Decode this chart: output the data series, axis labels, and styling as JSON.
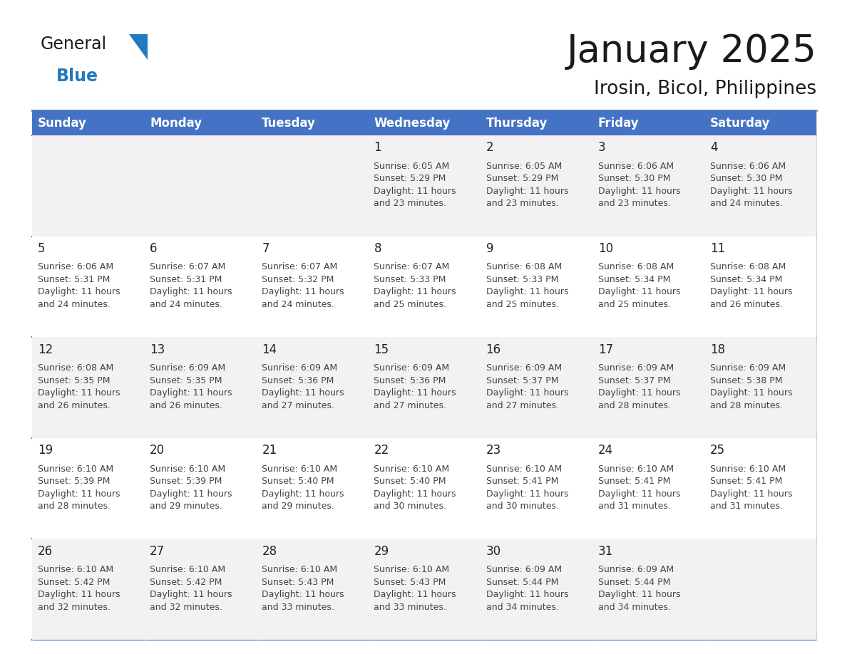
{
  "title": "January 2025",
  "subtitle": "Irosin, Bicol, Philippines",
  "header_bg": "#4472C4",
  "header_text_color": "#FFFFFF",
  "cell_bg_odd": "#F2F2F2",
  "cell_bg_even": "#FFFFFF",
  "day_headers": [
    "Sunday",
    "Monday",
    "Tuesday",
    "Wednesday",
    "Thursday",
    "Friday",
    "Saturday"
  ],
  "calendar_data": [
    [
      {
        "day": "",
        "info": ""
      },
      {
        "day": "",
        "info": ""
      },
      {
        "day": "",
        "info": ""
      },
      {
        "day": "1",
        "info": "Sunrise: 6:05 AM\nSunset: 5:29 PM\nDaylight: 11 hours\nand 23 minutes."
      },
      {
        "day": "2",
        "info": "Sunrise: 6:05 AM\nSunset: 5:29 PM\nDaylight: 11 hours\nand 23 minutes."
      },
      {
        "day": "3",
        "info": "Sunrise: 6:06 AM\nSunset: 5:30 PM\nDaylight: 11 hours\nand 23 minutes."
      },
      {
        "day": "4",
        "info": "Sunrise: 6:06 AM\nSunset: 5:30 PM\nDaylight: 11 hours\nand 24 minutes."
      }
    ],
    [
      {
        "day": "5",
        "info": "Sunrise: 6:06 AM\nSunset: 5:31 PM\nDaylight: 11 hours\nand 24 minutes."
      },
      {
        "day": "6",
        "info": "Sunrise: 6:07 AM\nSunset: 5:31 PM\nDaylight: 11 hours\nand 24 minutes."
      },
      {
        "day": "7",
        "info": "Sunrise: 6:07 AM\nSunset: 5:32 PM\nDaylight: 11 hours\nand 24 minutes."
      },
      {
        "day": "8",
        "info": "Sunrise: 6:07 AM\nSunset: 5:33 PM\nDaylight: 11 hours\nand 25 minutes."
      },
      {
        "day": "9",
        "info": "Sunrise: 6:08 AM\nSunset: 5:33 PM\nDaylight: 11 hours\nand 25 minutes."
      },
      {
        "day": "10",
        "info": "Sunrise: 6:08 AM\nSunset: 5:34 PM\nDaylight: 11 hours\nand 25 minutes."
      },
      {
        "day": "11",
        "info": "Sunrise: 6:08 AM\nSunset: 5:34 PM\nDaylight: 11 hours\nand 26 minutes."
      }
    ],
    [
      {
        "day": "12",
        "info": "Sunrise: 6:08 AM\nSunset: 5:35 PM\nDaylight: 11 hours\nand 26 minutes."
      },
      {
        "day": "13",
        "info": "Sunrise: 6:09 AM\nSunset: 5:35 PM\nDaylight: 11 hours\nand 26 minutes."
      },
      {
        "day": "14",
        "info": "Sunrise: 6:09 AM\nSunset: 5:36 PM\nDaylight: 11 hours\nand 27 minutes."
      },
      {
        "day": "15",
        "info": "Sunrise: 6:09 AM\nSunset: 5:36 PM\nDaylight: 11 hours\nand 27 minutes."
      },
      {
        "day": "16",
        "info": "Sunrise: 6:09 AM\nSunset: 5:37 PM\nDaylight: 11 hours\nand 27 minutes."
      },
      {
        "day": "17",
        "info": "Sunrise: 6:09 AM\nSunset: 5:37 PM\nDaylight: 11 hours\nand 28 minutes."
      },
      {
        "day": "18",
        "info": "Sunrise: 6:09 AM\nSunset: 5:38 PM\nDaylight: 11 hours\nand 28 minutes."
      }
    ],
    [
      {
        "day": "19",
        "info": "Sunrise: 6:10 AM\nSunset: 5:39 PM\nDaylight: 11 hours\nand 28 minutes."
      },
      {
        "day": "20",
        "info": "Sunrise: 6:10 AM\nSunset: 5:39 PM\nDaylight: 11 hours\nand 29 minutes."
      },
      {
        "day": "21",
        "info": "Sunrise: 6:10 AM\nSunset: 5:40 PM\nDaylight: 11 hours\nand 29 minutes."
      },
      {
        "day": "22",
        "info": "Sunrise: 6:10 AM\nSunset: 5:40 PM\nDaylight: 11 hours\nand 30 minutes."
      },
      {
        "day": "23",
        "info": "Sunrise: 6:10 AM\nSunset: 5:41 PM\nDaylight: 11 hours\nand 30 minutes."
      },
      {
        "day": "24",
        "info": "Sunrise: 6:10 AM\nSunset: 5:41 PM\nDaylight: 11 hours\nand 31 minutes."
      },
      {
        "day": "25",
        "info": "Sunrise: 6:10 AM\nSunset: 5:41 PM\nDaylight: 11 hours\nand 31 minutes."
      }
    ],
    [
      {
        "day": "26",
        "info": "Sunrise: 6:10 AM\nSunset: 5:42 PM\nDaylight: 11 hours\nand 32 minutes."
      },
      {
        "day": "27",
        "info": "Sunrise: 6:10 AM\nSunset: 5:42 PM\nDaylight: 11 hours\nand 32 minutes."
      },
      {
        "day": "28",
        "info": "Sunrise: 6:10 AM\nSunset: 5:43 PM\nDaylight: 11 hours\nand 33 minutes."
      },
      {
        "day": "29",
        "info": "Sunrise: 6:10 AM\nSunset: 5:43 PM\nDaylight: 11 hours\nand 33 minutes."
      },
      {
        "day": "30",
        "info": "Sunrise: 6:09 AM\nSunset: 5:44 PM\nDaylight: 11 hours\nand 34 minutes."
      },
      {
        "day": "31",
        "info": "Sunrise: 6:09 AM\nSunset: 5:44 PM\nDaylight: 11 hours\nand 34 minutes."
      },
      {
        "day": "",
        "info": ""
      }
    ]
  ],
  "logo_color_general": "#1a1a1a",
  "logo_color_blue": "#2479BD",
  "logo_triangle_color": "#2479BD",
  "title_fontsize": 38,
  "subtitle_fontsize": 19,
  "header_fontsize": 12,
  "day_number_fontsize": 12,
  "info_fontsize": 9,
  "row_divider_color": "#3A6DB5",
  "col_divider_color": "#CCCCCC"
}
